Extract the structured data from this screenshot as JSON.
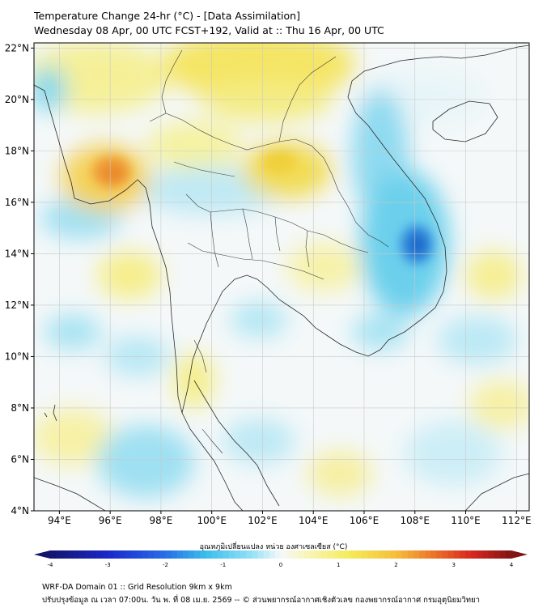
{
  "header": {
    "title_line1": "Temperature Change 24-hr (°C) - [Data Assimilation]",
    "title_line2": "Wednesday 08 Apr, 00 UTC FCST+192, Valid at :: Thu 16 Apr, 00 UTC"
  },
  "map": {
    "lon_range": [
      93,
      112.5
    ],
    "lat_range": [
      4,
      22.2
    ],
    "lon_ticks": [
      "94°E",
      "96°E",
      "98°E",
      "100°E",
      "102°E",
      "104°E",
      "106°E",
      "108°E",
      "110°E",
      "112°E"
    ],
    "lat_ticks": [
      "4°N",
      "6°N",
      "8°N",
      "10°N",
      "12°N",
      "14°N",
      "16°N",
      "18°N",
      "20°N",
      "22°N"
    ],
    "gridlines": true,
    "highlights": [
      {
        "lon": 96.2,
        "lat": 17.2,
        "value": 2.3
      },
      {
        "lon": 108.0,
        "lat": 14.4,
        "value": -2.5
      },
      {
        "lon": 102.8,
        "lat": 17.5,
        "value": 1.2
      },
      {
        "lon": 100.5,
        "lat": 21.2,
        "value": 1.0
      }
    ]
  },
  "colorbar": {
    "label": "อุณหภูมิเปลี่ยนแปลง หน่วย องศาเซลเซียส (°C)",
    "min": -4,
    "max": 4,
    "ticks": [
      "-4",
      "-3",
      "-2",
      "-1",
      "0",
      "1",
      "2",
      "3",
      "4"
    ]
  },
  "footer": {
    "line1": "WRF-DA Domain 01 :: Grid Resolution 9km x 9km",
    "line2": "ปรับปรุงข้อมูล ณ เวลา 07:00น. วัน พ. ที่ 08 เม.ย. 2569 -- © ส่วนพยากรณ์อากาศเชิงตัวเลข กองพยากรณ์อากาศ กรมอุตุนิยมวิทยา"
  }
}
